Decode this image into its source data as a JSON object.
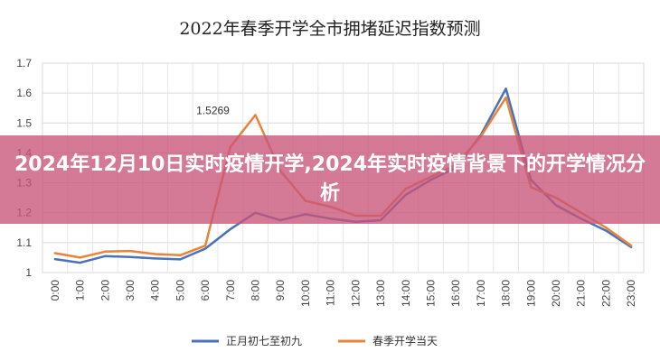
{
  "overlay": {
    "headline": "2024年12月10日实时疫情开学,2024年实时疫情背景下的开学情况分析"
  },
  "colors": {
    "series_blue": "#4a72b8",
    "series_orange": "#e8843a",
    "overlay_bg": "#c85578"
  },
  "chart_data": {
    "type": "line",
    "title": "2022年春季开学全市拥堵延迟指数预测",
    "xlabel": "",
    "ylabel": "",
    "ylim": [
      1,
      1.7
    ],
    "yticks": [
      "1",
      "1.1",
      "1.2",
      "1.3",
      "1.4",
      "1.5",
      "1.6",
      "1.7"
    ],
    "grid": true,
    "legend_position": "bottom",
    "x": [
      "0:00",
      "1:00",
      "2:00",
      "3:00",
      "4:00",
      "5:00",
      "6:00",
      "7:00",
      "8:00",
      "9:00",
      "10:00",
      "11:00",
      "12:00",
      "13:00",
      "14:00",
      "15:00",
      "16:00",
      "17:00",
      "18:00",
      "19:00",
      "20:00",
      "21:00",
      "22:00",
      "23:00"
    ],
    "series": [
      {
        "name": "正月初七至初九",
        "color": "#4a72b8",
        "values": [
          1.045,
          1.033,
          1.055,
          1.052,
          1.047,
          1.044,
          1.08,
          1.145,
          1.2,
          1.175,
          1.195,
          1.18,
          1.17,
          1.175,
          1.26,
          1.31,
          1.35,
          1.46,
          1.615,
          1.31,
          1.225,
          1.18,
          1.14,
          1.085
        ]
      },
      {
        "name": "春季开学当天",
        "color": "#e8843a",
        "values": [
          1.065,
          1.05,
          1.07,
          1.072,
          1.062,
          1.058,
          1.09,
          1.42,
          1.5269,
          1.34,
          1.24,
          1.22,
          1.19,
          1.19,
          1.28,
          1.32,
          1.36,
          1.455,
          1.585,
          1.285,
          1.25,
          1.2,
          1.15,
          1.09
        ]
      }
    ],
    "annotations": [
      {
        "series": 1,
        "index": 8,
        "text": "1.5269"
      }
    ]
  }
}
